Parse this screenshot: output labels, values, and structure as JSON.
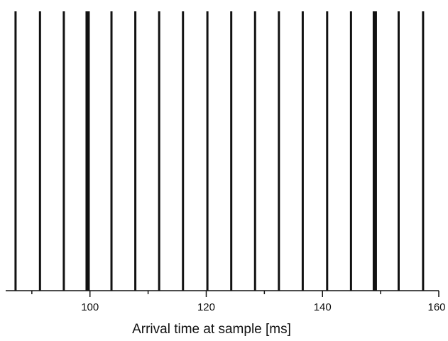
{
  "chart_data": {
    "type": "spike-train",
    "title": "",
    "xlabel": "Arrival time at sample [ms]",
    "ylabel": "",
    "xlim": [
      85.5,
      160
    ],
    "xticks": [
      100,
      120,
      140,
      160
    ],
    "xtick_labels": [
      "100",
      "120",
      "140",
      "160"
    ],
    "minor_xticks": [
      90,
      110,
      130,
      150
    ],
    "grid": false,
    "legend": "none",
    "line_color": "#111111",
    "series": [
      {
        "x": [
          87.2,
          91.4,
          95.5,
          99.6,
          103.7,
          107.8,
          111.9,
          116.0,
          120.2,
          124.3,
          128.4,
          132.5,
          136.6,
          140.8,
          144.9,
          149.0,
          153.1,
          157.3
        ],
        "weight": [
          1,
          1,
          1,
          2,
          1,
          1,
          1,
          1,
          1,
          1,
          1,
          1,
          1,
          1,
          1,
          2,
          1,
          1
        ]
      }
    ]
  }
}
